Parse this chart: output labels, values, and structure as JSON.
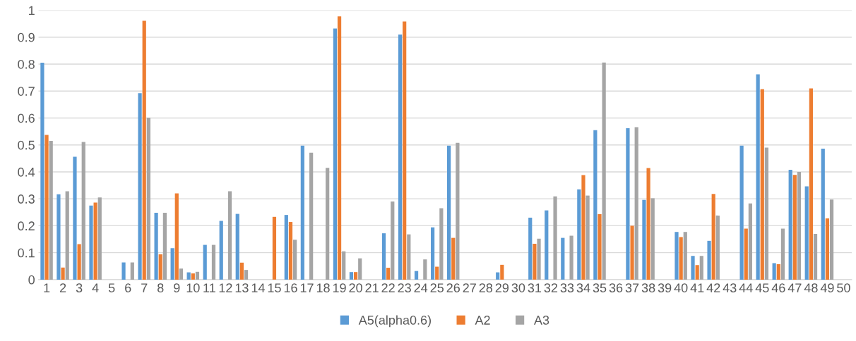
{
  "chart_data": {
    "type": "bar",
    "categories": [
      "1",
      "2",
      "3",
      "4",
      "5",
      "6",
      "7",
      "8",
      "9",
      "10",
      "11",
      "12",
      "13",
      "14",
      "15",
      "16",
      "17",
      "18",
      "19",
      "20",
      "21",
      "22",
      "23",
      "24",
      "25",
      "26",
      "27",
      "28",
      "29",
      "30",
      "31",
      "32",
      "33",
      "34",
      "35",
      "36",
      "37",
      "38",
      "39",
      "40",
      "41",
      "42",
      "43",
      "44",
      "45",
      "46",
      "47",
      "48",
      "49",
      "50"
    ],
    "series": [
      {
        "name": "A5(alpha0.6)",
        "color": "#5b9bd5",
        "values": [
          0.805,
          0.317,
          0.456,
          0.275,
          0,
          0.064,
          0.692,
          0.248,
          0.117,
          0.027,
          0.129,
          0.218,
          0.244,
          0,
          0,
          0.24,
          0.497,
          0,
          0.932,
          0.028,
          0,
          0.172,
          0.91,
          0.032,
          0.194,
          0.497,
          0,
          0,
          0.027,
          0,
          0.23,
          0.257,
          0.155,
          0.335,
          0.555,
          0,
          0.562,
          0.296,
          0,
          0.177,
          0.088,
          0.144,
          0,
          0.497,
          0.762,
          0.061,
          0.408,
          0.346,
          0.486,
          0
        ]
      },
      {
        "name": "A2",
        "color": "#ed7d31",
        "values": [
          0.537,
          0.045,
          0.132,
          0.286,
          0,
          0,
          0.961,
          0.094,
          0.32,
          0.023,
          0,
          0,
          0.063,
          0,
          0.233,
          0.214,
          0,
          0,
          0.977,
          0.028,
          0,
          0.044,
          0.958,
          0,
          0.048,
          0.155,
          0,
          0,
          0.055,
          0,
          0.133,
          0,
          0,
          0.388,
          0.243,
          0,
          0.2,
          0.414,
          0,
          0.158,
          0.054,
          0.318,
          0,
          0.189,
          0.707,
          0.057,
          0.389,
          0.71,
          0.227,
          0
        ]
      },
      {
        "name": "A3",
        "color": "#a5a5a5",
        "values": [
          0.515,
          0.328,
          0.511,
          0.305,
          0,
          0.064,
          0.601,
          0.248,
          0.041,
          0.029,
          0.129,
          0.328,
          0.036,
          0,
          0,
          0.148,
          0.471,
          0.415,
          0.105,
          0.079,
          0,
          0.29,
          0.168,
          0.075,
          0.265,
          0.508,
          0,
          0,
          0,
          0,
          0.152,
          0.309,
          0.163,
          0.312,
          0.806,
          0,
          0.566,
          0.302,
          0,
          0.177,
          0.088,
          0.238,
          0,
          0.283,
          0.49,
          0.189,
          0.4,
          0.17,
          0.297,
          0
        ]
      }
    ],
    "ylim": [
      0,
      1
    ],
    "yticks": [
      0,
      0.1,
      0.2,
      0.3,
      0.4,
      0.5,
      0.6,
      0.7,
      0.8,
      0.9,
      1
    ],
    "grid": "y",
    "legend": "bottom"
  }
}
